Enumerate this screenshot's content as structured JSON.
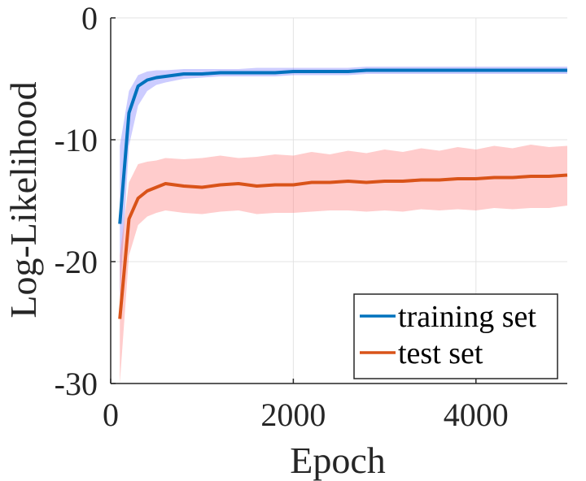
{
  "chart_data": {
    "type": "line",
    "title": "",
    "xlabel": "Epoch",
    "ylabel": "Log-Likelihood",
    "xlim": [
      0,
      5000
    ],
    "ylim": [
      -30,
      0
    ],
    "xticks": [
      0,
      2000,
      4000
    ],
    "yticks": [
      0,
      -10,
      -20,
      -30
    ],
    "xtick_labels": [
      "0",
      "2000",
      "4000"
    ],
    "ytick_labels": [
      "0",
      "-10",
      "-20",
      "-30"
    ],
    "grid": true,
    "legend_position": "bottom-right",
    "x": [
      100,
      200,
      300,
      400,
      500,
      600,
      800,
      1000,
      1200,
      1400,
      1600,
      1800,
      2000,
      2200,
      2400,
      2600,
      2800,
      3000,
      3200,
      3400,
      3600,
      3800,
      4000,
      4200,
      4400,
      4600,
      4800,
      5000
    ],
    "series": [
      {
        "name": "training set",
        "color": "#0072BD",
        "band_color": "#8080FF",
        "values": [
          -16.9,
          -7.8,
          -5.6,
          -5.1,
          -4.9,
          -4.8,
          -4.6,
          -4.6,
          -4.5,
          -4.5,
          -4.5,
          -4.5,
          -4.4,
          -4.4,
          -4.4,
          -4.4,
          -4.3,
          -4.3,
          -4.3,
          -4.3,
          -4.3,
          -4.3,
          -4.3,
          -4.3,
          -4.3,
          -4.3,
          -4.3,
          -4.3
        ],
        "upper": [
          -10.5,
          -6.0,
          -4.7,
          -4.4,
          -4.3,
          -4.3,
          -4.2,
          -4.2,
          -4.2,
          -4.2,
          -4.1,
          -4.1,
          -4.1,
          -4.1,
          -4.1,
          -4.1,
          -4.0,
          -4.0,
          -4.0,
          -4.0,
          -4.0,
          -4.0,
          -4.0,
          -4.0,
          -4.0,
          -4.0,
          -4.0,
          -4.0
        ],
        "lower": [
          -23.0,
          -10.5,
          -7.2,
          -6.0,
          -5.5,
          -5.3,
          -5.0,
          -4.9,
          -4.8,
          -4.8,
          -4.8,
          -4.8,
          -4.7,
          -4.7,
          -4.7,
          -4.7,
          -4.6,
          -4.6,
          -4.6,
          -4.6,
          -4.6,
          -4.6,
          -4.6,
          -4.6,
          -4.6,
          -4.6,
          -4.6,
          -4.6
        ]
      },
      {
        "name": "test set",
        "color": "#D95319",
        "band_color": "#FF8080",
        "values": [
          -24.7,
          -16.5,
          -14.8,
          -14.2,
          -13.9,
          -13.6,
          -13.8,
          -13.9,
          -13.7,
          -13.6,
          -13.8,
          -13.7,
          -13.7,
          -13.5,
          -13.5,
          -13.4,
          -13.5,
          -13.4,
          -13.4,
          -13.3,
          -13.3,
          -13.2,
          -13.2,
          -13.1,
          -13.1,
          -13.0,
          -13.0,
          -12.9
        ],
        "upper": [
          -19.5,
          -13.5,
          -12.0,
          -11.8,
          -11.7,
          -11.5,
          -11.6,
          -11.5,
          -11.3,
          -11.5,
          -11.4,
          -11.2,
          -11.3,
          -11.0,
          -11.2,
          -10.9,
          -11.1,
          -10.8,
          -11.0,
          -10.7,
          -10.9,
          -10.6,
          -10.8,
          -10.5,
          -10.7,
          -10.4,
          -10.6,
          -10.5
        ],
        "lower": [
          -30.0,
          -19.5,
          -17.0,
          -16.3,
          -16.0,
          -15.8,
          -16.0,
          -16.1,
          -15.9,
          -15.8,
          -16.1,
          -16.0,
          -16.0,
          -15.9,
          -15.8,
          -15.8,
          -15.9,
          -15.8,
          -15.9,
          -15.7,
          -15.8,
          -15.7,
          -15.8,
          -15.6,
          -15.7,
          -15.6,
          -15.6,
          -15.4
        ]
      }
    ]
  }
}
